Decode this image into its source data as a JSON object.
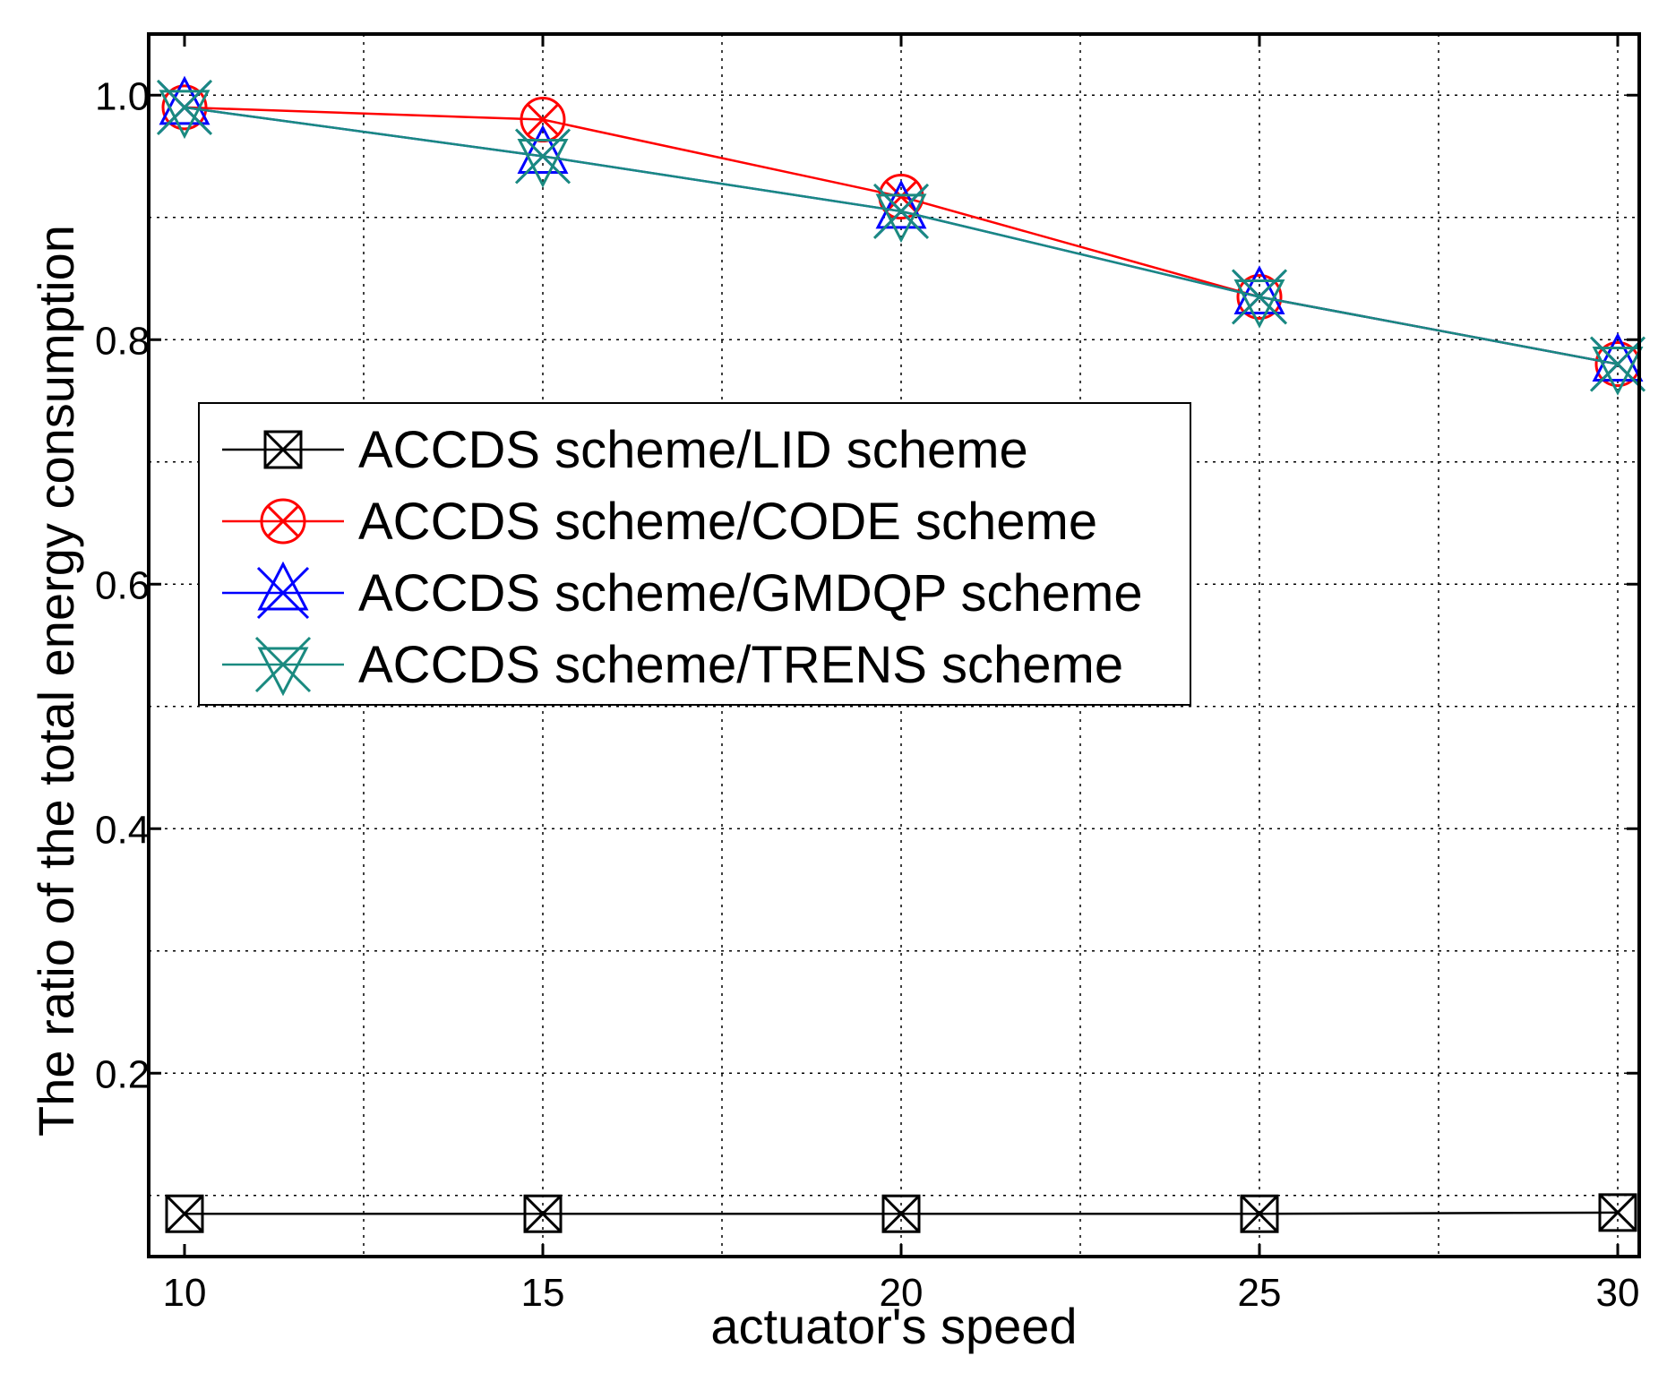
{
  "chart_data": {
    "type": "line",
    "x": [
      10,
      15,
      20,
      25,
      30
    ],
    "xticks": [
      "10",
      "15",
      "20",
      "25",
      "30"
    ],
    "yticks": [
      "0.2",
      "0.4",
      "0.6",
      "0.8",
      "1.0"
    ],
    "xlim": [
      9.5,
      30.3
    ],
    "ylim": [
      0.05,
      1.05
    ],
    "xlabel": "actuator's speed",
    "ylabel": "The ratio of the total energy consumption",
    "grid": true,
    "legend_position": "center-left",
    "series": [
      {
        "name": "ACCDS scheme/LID scheme",
        "color": "#000000",
        "marker": "boxed-x",
        "values": [
          0.085,
          0.085,
          0.085,
          0.085,
          0.086
        ]
      },
      {
        "name": "ACCDS scheme/CODE scheme",
        "color": "#ff0000",
        "marker": "circled-x",
        "values": [
          0.99,
          0.98,
          0.917,
          0.835,
          0.78
        ]
      },
      {
        "name": "ACCDS scheme/GMDQP scheme",
        "color": "#0000ff",
        "marker": "triangle-x",
        "values": [
          0.99,
          0.95,
          0.905,
          0.835,
          0.78
        ]
      },
      {
        "name": "ACCDS scheme/TRENS scheme",
        "color": "#1a8a80",
        "marker": "inverted-triangle-x",
        "values": [
          0.99,
          0.95,
          0.905,
          0.835,
          0.78
        ]
      }
    ]
  }
}
